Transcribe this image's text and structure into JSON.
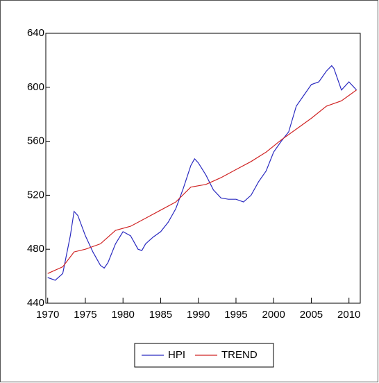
{
  "chart_data": {
    "type": "line",
    "xlim": [
      1969.75,
      2011.5
    ],
    "xticks": [
      1970,
      1975,
      1980,
      1985,
      1990,
      1995,
      2000,
      2005,
      2010
    ],
    "ylim": [
      440,
      640
    ],
    "yticks": [
      440,
      480,
      520,
      560,
      600,
      640
    ],
    "legend": "bottom",
    "series": [
      {
        "name": "HPI",
        "color": "#2a2ac0",
        "x": [
          1970,
          1971,
          1972,
          1973,
          1973.5,
          1974,
          1975,
          1976,
          1977,
          1977.5,
          1978,
          1979,
          1980,
          1981,
          1982,
          1982.5,
          1983,
          1984,
          1985,
          1986,
          1987,
          1988,
          1989,
          1989.5,
          1990,
          1991,
          1992,
          1993,
          1994,
          1995,
          1996,
          1997,
          1998,
          1999,
          2000,
          2001,
          2002,
          2003,
          2004,
          2005,
          2006,
          2007,
          2007.7,
          2008,
          2009,
          2010,
          2011
        ],
        "values": [
          459,
          457,
          462,
          490,
          508,
          505,
          490,
          478,
          468,
          466,
          470,
          484,
          493,
          490,
          480,
          479,
          484,
          489,
          493,
          500,
          510,
          525,
          542,
          547,
          544,
          535,
          524,
          518,
          517,
          517,
          515,
          520,
          530,
          538,
          552,
          560,
          567,
          586,
          594,
          602,
          604,
          612,
          616,
          614,
          598,
          604,
          598
        ]
      },
      {
        "name": "TREND",
        "color": "#d02424",
        "x": [
          1970,
          1972,
          1973.5,
          1975,
          1977,
          1979,
          1981,
          1983,
          1985,
          1987,
          1989,
          1991,
          1993,
          1995,
          1997,
          1999,
          2001,
          2003,
          2005,
          2007,
          2009,
          2011
        ],
        "values": [
          462,
          467,
          478,
          480,
          484,
          494,
          497,
          503,
          509,
          515,
          526,
          528,
          533,
          539,
          545,
          552,
          561,
          569,
          577,
          586,
          590,
          598
        ]
      }
    ]
  }
}
